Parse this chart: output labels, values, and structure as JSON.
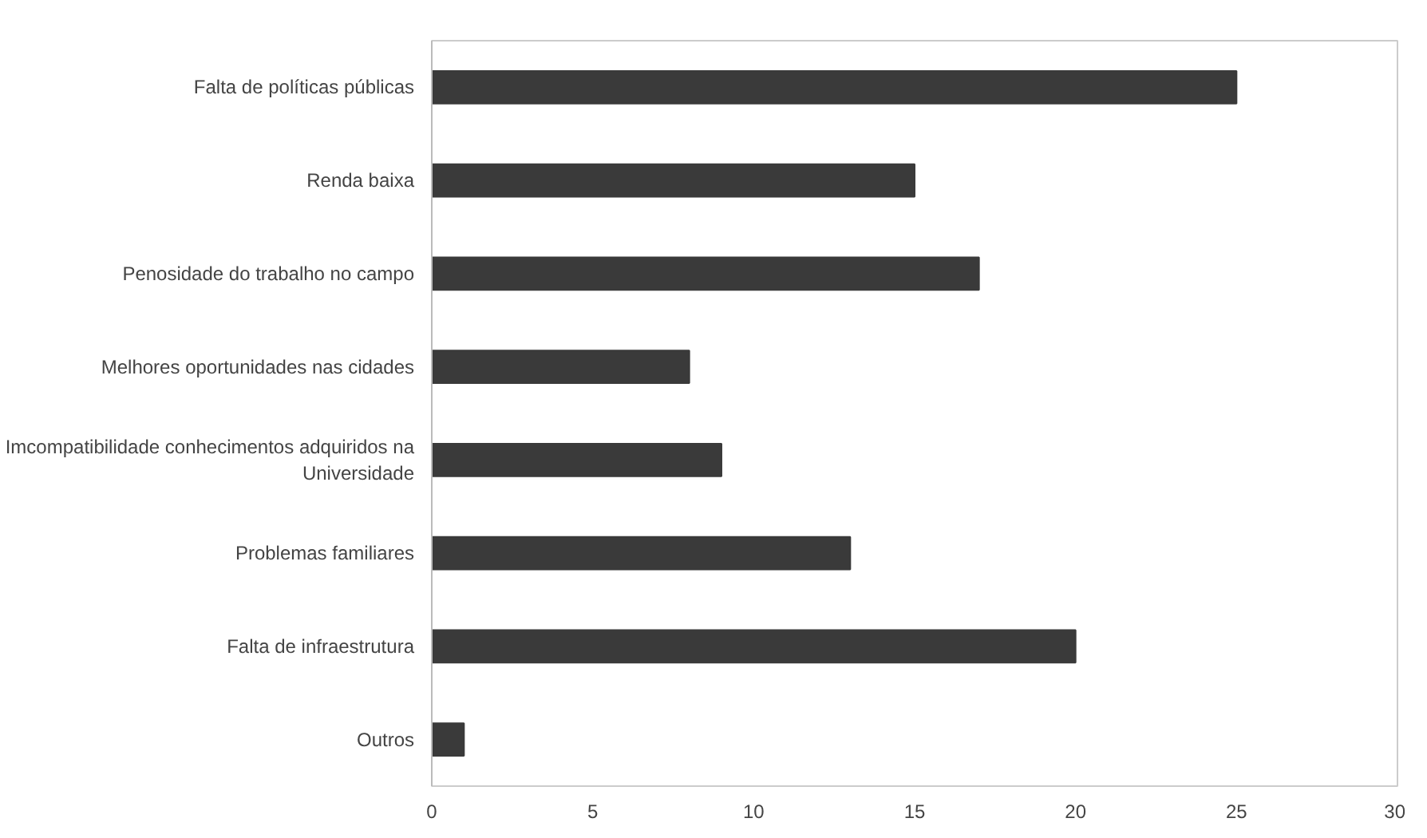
{
  "chart_data": {
    "type": "bar",
    "orientation": "horizontal",
    "categories": [
      "Falta de políticas públicas",
      "Renda baixa",
      "Penosidade do trabalho no campo",
      "Melhores oportunidades nas cidades",
      "Imcompatibilidade conhecimentos adquiridos na Universidade",
      "Problemas familiares",
      "Falta de infraestrutura",
      "Outros"
    ],
    "values": [
      25,
      15,
      17,
      8,
      9,
      13,
      20,
      1
    ],
    "color": "#3a3a3a",
    "xlim": [
      0,
      30
    ],
    "xticks": [
      0,
      5,
      10,
      15,
      20,
      25,
      30
    ],
    "grid": false
  }
}
